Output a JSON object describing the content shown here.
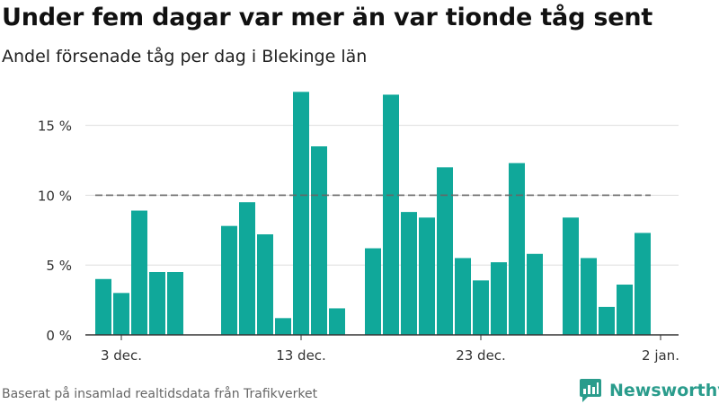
{
  "header": {
    "title": "Under fem dagar var mer än var tionde tåg sent",
    "subtitle": "Andel försenade tåg per dag i Blekinge län"
  },
  "footer": {
    "source": "Baserat på insamlad realtidsdata från Trafikverket",
    "brand": "Newsworthy"
  },
  "colors": {
    "bar": "#10a89a",
    "reference_line": "#666666",
    "grid": "#dddddd",
    "axis": "#333333",
    "brand": "#2a9c8c"
  },
  "chart_data": {
    "type": "bar",
    "title": "Under fem dagar var mer än var tionde tåg sent",
    "subtitle": "Andel försenade tåg per dag i Blekinge län",
    "xlabel": "",
    "ylabel": "",
    "ylim": [
      0,
      18
    ],
    "y_ticks": [
      0,
      5,
      10,
      15
    ],
    "y_tick_labels": [
      "0 %",
      "5 %",
      "10 %",
      "15 %"
    ],
    "x_range": [
      "2023-12-01",
      "2024-01-03"
    ],
    "x_ticks": [
      "2023-12-03",
      "2023-12-13",
      "2023-12-23",
      "2024-01-02"
    ],
    "x_tick_labels": [
      "3 dec.",
      "13 dec.",
      "23 dec.",
      "2 jan."
    ],
    "reference_line": {
      "value": 10,
      "style": "dashed"
    },
    "grid": true,
    "bars": [
      {
        "date": "2023-12-02",
        "value": 4.0
      },
      {
        "date": "2023-12-03",
        "value": 3.0
      },
      {
        "date": "2023-12-04",
        "value": 8.9
      },
      {
        "date": "2023-12-05",
        "value": 4.5
      },
      {
        "date": "2023-12-06",
        "value": 4.5
      },
      {
        "date": "2023-12-09",
        "value": 7.8
      },
      {
        "date": "2023-12-10",
        "value": 9.5
      },
      {
        "date": "2023-12-11",
        "value": 7.2
      },
      {
        "date": "2023-12-12",
        "value": 1.2
      },
      {
        "date": "2023-12-13",
        "value": 17.4
      },
      {
        "date": "2023-12-14",
        "value": 13.5
      },
      {
        "date": "2023-12-15",
        "value": 1.9
      },
      {
        "date": "2023-12-17",
        "value": 6.2
      },
      {
        "date": "2023-12-18",
        "value": 17.2
      },
      {
        "date": "2023-12-19",
        "value": 8.8
      },
      {
        "date": "2023-12-20",
        "value": 8.4
      },
      {
        "date": "2023-12-21",
        "value": 12.0
      },
      {
        "date": "2023-12-22",
        "value": 5.5
      },
      {
        "date": "2023-12-23",
        "value": 3.9
      },
      {
        "date": "2023-12-24",
        "value": 5.2
      },
      {
        "date": "2023-12-25",
        "value": 12.3
      },
      {
        "date": "2023-12-26",
        "value": 5.8
      },
      {
        "date": "2023-12-28",
        "value": 8.4
      },
      {
        "date": "2023-12-29",
        "value": 5.5
      },
      {
        "date": "2023-12-30",
        "value": 2.0
      },
      {
        "date": "2023-12-31",
        "value": 3.6
      },
      {
        "date": "2024-01-01",
        "value": 7.3
      }
    ]
  }
}
